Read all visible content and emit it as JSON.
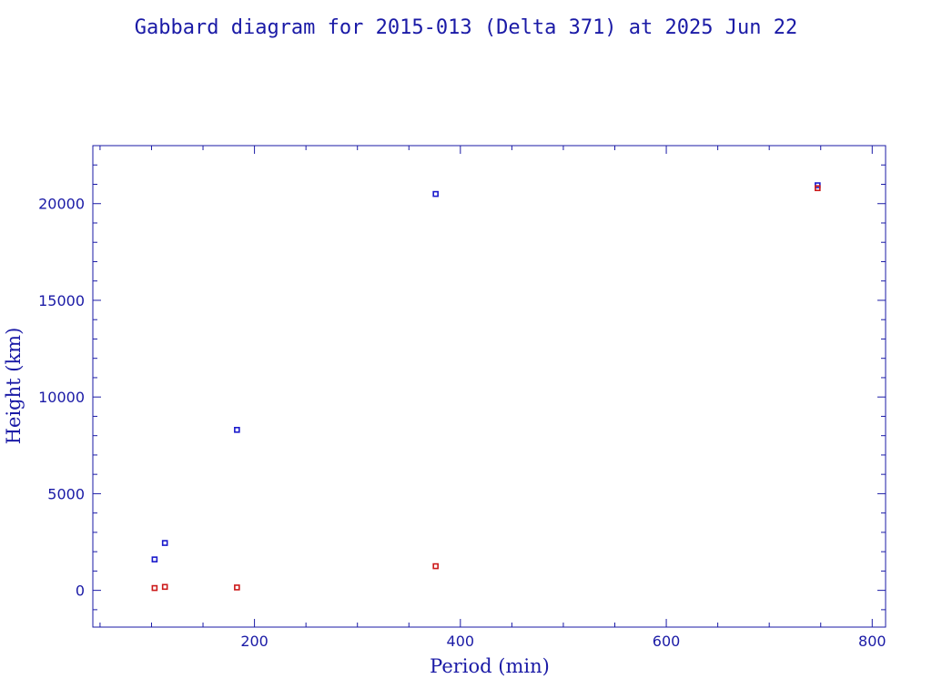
{
  "chart_data": {
    "type": "scatter",
    "title": "Gabbard diagram for 2015-013 (Delta 371) at 2025 Jun 22",
    "xlabel": "Period (min)",
    "ylabel": "Height (km)",
    "xlim": [
      43,
      813
    ],
    "ylim": [
      -1900,
      23000
    ],
    "x_ticks": [
      200,
      400,
      600,
      800
    ],
    "y_ticks": [
      0,
      5000,
      10000,
      15000,
      20000
    ],
    "x_tick_labels": [
      "200",
      "400",
      "600",
      "800"
    ],
    "y_tick_labels": [
      "0",
      "5000",
      "10000",
      "15000",
      "20000"
    ],
    "grid": false,
    "legend": "none",
    "series": [
      {
        "role": "apogee",
        "color": "#1a1acc",
        "points": [
          {
            "x": 103,
            "y": 1600
          },
          {
            "x": 113,
            "y": 2450
          },
          {
            "x": 183,
            "y": 8300
          },
          {
            "x": 376,
            "y": 20500
          },
          {
            "x": 747,
            "y": 20950
          }
        ]
      },
      {
        "role": "perigee",
        "color": "#cc1a1a",
        "points": [
          {
            "x": 103,
            "y": 120
          },
          {
            "x": 113,
            "y": 180
          },
          {
            "x": 183,
            "y": 150
          },
          {
            "x": 376,
            "y": 1250
          },
          {
            "x": 747,
            "y": 20800
          }
        ]
      }
    ],
    "frame_color": "#1a1aa6"
  }
}
